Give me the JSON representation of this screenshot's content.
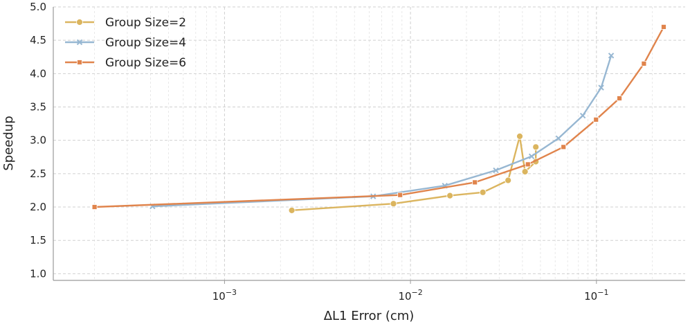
{
  "chart_data": {
    "type": "line",
    "title": "",
    "xlabel": "ΔL1 Error (cm)",
    "ylabel": "Speedup",
    "xscale": "log",
    "xlim": [
      0.00012,
      0.3
    ],
    "ylim": [
      0.9,
      5.0
    ],
    "x_ticks": [
      {
        "value": 0.001,
        "label_base": "10",
        "label_exp": "−3"
      },
      {
        "value": 0.01,
        "label_base": "10",
        "label_exp": "−2"
      },
      {
        "value": 0.1,
        "label_base": "10",
        "label_exp": "−1"
      }
    ],
    "y_ticks": [
      {
        "value": 1.0,
        "label": "1.0"
      },
      {
        "value": 1.5,
        "label": "1.5"
      },
      {
        "value": 2.0,
        "label": "2.0"
      },
      {
        "value": 2.5,
        "label": "2.5"
      },
      {
        "value": 3.0,
        "label": "3.0"
      },
      {
        "value": 3.5,
        "label": "3.5"
      },
      {
        "value": 4.0,
        "label": "4.0"
      },
      {
        "value": 4.5,
        "label": "4.5"
      },
      {
        "value": 5.0,
        "label": "5.0"
      }
    ],
    "grid": true,
    "legend_position": "top-left",
    "series": [
      {
        "name": "Group Size=2",
        "color": "#dbb55f",
        "marker": "circle",
        "x": [
          0.0023,
          0.0081,
          0.0163,
          0.0245,
          0.0335,
          0.0387,
          0.0413,
          0.0472,
          0.0472
        ],
        "y": [
          1.95,
          2.05,
          2.17,
          2.22,
          2.4,
          3.06,
          2.53,
          2.68,
          2.9
        ]
      },
      {
        "name": "Group Size=4",
        "color": "#97b7d2",
        "marker": "x",
        "x": [
          0.00041,
          0.0063,
          0.0153,
          0.0288,
          0.0448,
          0.0625,
          0.0845,
          0.106,
          0.12
        ],
        "y": [
          2.01,
          2.16,
          2.32,
          2.55,
          2.76,
          3.03,
          3.37,
          3.79,
          4.27
        ]
      },
      {
        "name": "Group Size=6",
        "color": "#e0844c",
        "marker": "square",
        "x": [
          0.0002,
          0.0088,
          0.0222,
          0.0428,
          0.0665,
          0.0995,
          0.133,
          0.18,
          0.23
        ],
        "y": [
          2.0,
          2.18,
          2.37,
          2.64,
          2.9,
          3.31,
          3.63,
          4.15,
          4.7
        ]
      }
    ]
  }
}
